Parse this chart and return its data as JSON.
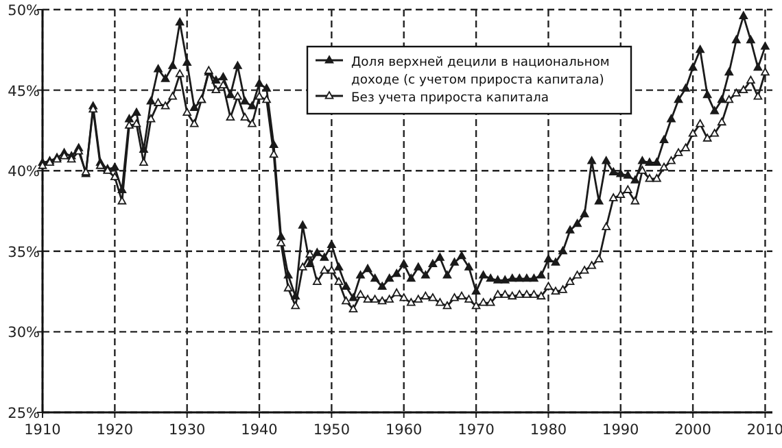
{
  "chart_data": {
    "type": "line",
    "xlim": [
      1910,
      2011
    ],
    "ylim": [
      25,
      50
    ],
    "xticks": [
      1910,
      1920,
      1930,
      1940,
      1950,
      1960,
      1970,
      1980,
      1990,
      2000,
      2010
    ],
    "yticks": [
      {
        "value": 25,
        "label": "25%"
      },
      {
        "value": 30,
        "label": "30%"
      },
      {
        "value": 35,
        "label": "35%"
      },
      {
        "value": 40,
        "label": "40%"
      },
      {
        "value": 45,
        "label": "45%"
      },
      {
        "value": 50,
        "label": "50%"
      }
    ],
    "grid": true,
    "legend": "top right",
    "marker": "triangle",
    "line_style": "solid",
    "x": [
      1910,
      1911,
      1912,
      1913,
      1914,
      1915,
      1916,
      1917,
      1918,
      1919,
      1920,
      1921,
      1922,
      1923,
      1924,
      1925,
      1926,
      1927,
      1928,
      1929,
      1930,
      1931,
      1932,
      1933,
      1934,
      1935,
      1936,
      1937,
      1938,
      1939,
      1940,
      1941,
      1942,
      1943,
      1944,
      1945,
      1946,
      1947,
      1948,
      1949,
      1950,
      1951,
      1952,
      1953,
      1954,
      1955,
      1956,
      1957,
      1958,
      1959,
      1960,
      1961,
      1962,
      1963,
      1964,
      1965,
      1966,
      1967,
      1968,
      1969,
      1970,
      1971,
      1972,
      1973,
      1974,
      1975,
      1976,
      1977,
      1978,
      1979,
      1980,
      1981,
      1982,
      1983,
      1984,
      1985,
      1986,
      1987,
      1988,
      1989,
      1990,
      1991,
      1992,
      1993,
      1994,
      1995,
      1996,
      1997,
      1998,
      1999,
      2000,
      2001,
      2002,
      2003,
      2004,
      2005,
      2006,
      2007,
      2008,
      2009,
      2010
    ],
    "series": [
      {
        "name": "Доля верхней децили в национальном доходе (с учетом прироста капитала)",
        "color": "#1a1a1a",
        "values": [
          40.5,
          40.6,
          40.8,
          41.1,
          40.9,
          41.4,
          39.8,
          44.0,
          40.5,
          40.1,
          40.2,
          38.8,
          43.2,
          43.6,
          41.3,
          44.3,
          46.3,
          45.7,
          46.5,
          49.2,
          46.7,
          43.9,
          44.4,
          46.1,
          45.6,
          45.8,
          44.7,
          46.5,
          44.3,
          44.0,
          45.4,
          45.1,
          41.6,
          35.9,
          33.5,
          32.2,
          36.6,
          34.2,
          34.9,
          34.6,
          35.4,
          34.0,
          32.8,
          32.1,
          33.5,
          33.9,
          33.3,
          32.8,
          33.3,
          33.6,
          34.2,
          33.3,
          34.0,
          33.5,
          34.2,
          34.6,
          33.5,
          34.3,
          34.7,
          34.0,
          32.5,
          33.5,
          33.3,
          33.2,
          33.2,
          33.3,
          33.3,
          33.3,
          33.3,
          33.5,
          34.5,
          34.3,
          35.0,
          36.3,
          36.7,
          37.3,
          40.6,
          38.1,
          40.6,
          39.9,
          39.8,
          39.7,
          39.4,
          40.6,
          40.5,
          40.5,
          41.9,
          43.2,
          44.4,
          45.1,
          46.4,
          47.5,
          44.7,
          43.7,
          44.4,
          46.1,
          48.1,
          49.6,
          48.1,
          46.4,
          47.7
        ]
      },
      {
        "name": "Без учета прироста капитала",
        "color": "#1a1a1a",
        "values": [
          40.3,
          40.5,
          40.7,
          40.9,
          40.7,
          41.2,
          39.9,
          43.8,
          40.3,
          40.0,
          39.6,
          38.1,
          42.8,
          42.9,
          40.5,
          43.2,
          44.2,
          44.0,
          44.6,
          46.0,
          43.6,
          42.9,
          44.4,
          46.2,
          45.0,
          45.3,
          43.3,
          44.6,
          43.3,
          42.9,
          44.6,
          44.4,
          41.0,
          35.5,
          32.7,
          31.6,
          34.0,
          34.8,
          33.1,
          33.8,
          33.8,
          33.1,
          31.9,
          31.4,
          32.3,
          32.0,
          32.0,
          31.9,
          32.0,
          32.4,
          32.1,
          31.8,
          32.0,
          32.2,
          32.1,
          31.8,
          31.6,
          32.1,
          32.2,
          32.0,
          31.6,
          31.8,
          31.8,
          32.3,
          32.3,
          32.2,
          32.3,
          32.3,
          32.3,
          32.2,
          32.8,
          32.5,
          32.6,
          33.1,
          33.5,
          33.8,
          34.1,
          34.5,
          36.5,
          38.3,
          38.5,
          38.8,
          38.1,
          40.0,
          39.5,
          39.5,
          40.2,
          40.6,
          41.1,
          41.4,
          42.3,
          42.9,
          42.0,
          42.3,
          43.0,
          44.4,
          44.8,
          45.0,
          45.6,
          44.6,
          46.1
        ]
      }
    ]
  }
}
